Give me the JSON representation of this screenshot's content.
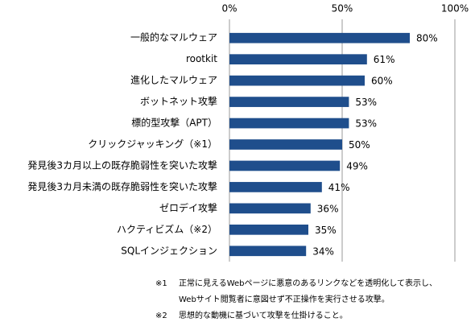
{
  "chart_data": {
    "type": "bar",
    "orientation": "horizontal",
    "categories": [
      "一般的なマルウェア",
      "rootkit",
      "進化したマルウェア",
      "ボットネット攻撃",
      "標的型攻撃（APT）",
      "クリックジャッキング（※1）",
      "発見後3カ月以上の既存脆弱性を突いた攻撃",
      "発見後3カ月未満の既存脆弱性を突いた攻撃",
      "ゼロデイ攻撃",
      "ハクティビズム（※2）",
      "SQLインジェクション"
    ],
    "values": [
      80,
      61,
      60,
      53,
      53,
      50,
      49,
      41,
      36,
      35,
      34
    ],
    "value_labels": [
      "80%",
      "61%",
      "60%",
      "53%",
      "53%",
      "50%",
      "49%",
      "41%",
      "36%",
      "35%",
      "34%"
    ],
    "color": "#1f4e8c",
    "xlim": [
      0,
      100
    ],
    "xticks": [
      {
        "value": 0,
        "label": "0%"
      },
      {
        "value": 50,
        "label": "50%"
      },
      {
        "value": 100,
        "label": "100%"
      }
    ],
    "grid": true,
    "notes": [
      {
        "mark": "※1",
        "text": [
          "正常に見えるWebページに悪意のあるリンクなどを透明化して表示し、",
          "Webサイト閲覧者に意図せず不正操作を実行させる攻撃。"
        ]
      },
      {
        "mark": "※2",
        "text": [
          "思想的な動機に基づいて攻撃を仕掛けること。"
        ]
      }
    ]
  }
}
